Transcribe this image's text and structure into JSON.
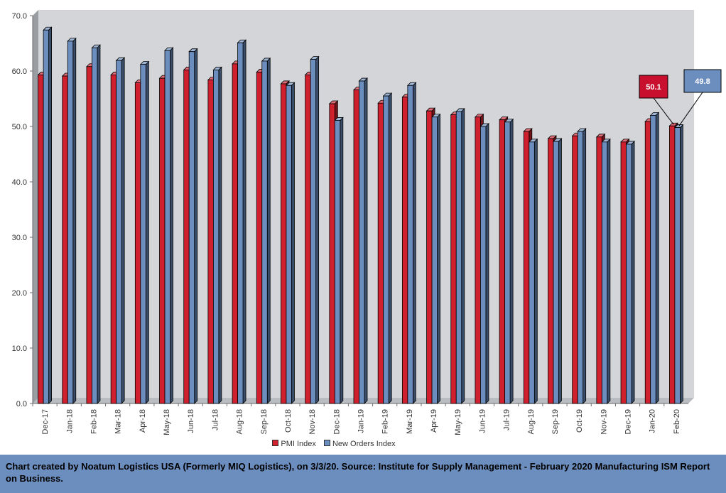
{
  "chart_data": {
    "type": "bar",
    "title": "",
    "xlabel": "",
    "ylabel": "",
    "ylim": [
      0,
      70
    ],
    "yticks": [
      "0.0",
      "10.0",
      "20.0",
      "30.0",
      "40.0",
      "50.0",
      "60.0",
      "70.0"
    ],
    "grid": false,
    "legend_position": "bottom",
    "categories": [
      "Dec-17",
      "Jan-18",
      "Feb-18",
      "Mar-18",
      "Apr-18",
      "May-18",
      "Jun-18",
      "Jul-18",
      "Aug-18",
      "Sep-18",
      "Oct-18",
      "Nov-18",
      "Dec-18",
      "Jan-19",
      "Feb-19",
      "Mar-19",
      "Apr-19",
      "May-19",
      "Jun-19",
      "Jul-19",
      "Aug-19",
      "Sep-19",
      "Oct-19",
      "Nov-19",
      "Dec-19",
      "Jan-20",
      "Feb-20"
    ],
    "series": [
      {
        "name": "PMI Index",
        "color": "#d0202e",
        "values": [
          59.3,
          59.1,
          60.8,
          59.3,
          57.9,
          58.7,
          60.2,
          58.4,
          61.3,
          59.8,
          57.7,
          59.3,
          54.1,
          56.6,
          54.2,
          55.3,
          52.8,
          52.1,
          51.7,
          51.2,
          49.1,
          47.8,
          48.3,
          48.1,
          47.2,
          50.9,
          50.1
        ]
      },
      {
        "name": "New Orders Index",
        "color": "#6c8ebf",
        "values": [
          67.4,
          65.4,
          64.2,
          61.9,
          61.2,
          63.7,
          63.5,
          60.2,
          65.1,
          61.8,
          57.4,
          62.1,
          51.1,
          58.2,
          55.5,
          57.4,
          51.7,
          52.7,
          50.0,
          50.8,
          47.2,
          47.3,
          49.1,
          47.2,
          46.8,
          52.0,
          49.8
        ]
      }
    ],
    "annotations": [
      {
        "text": "50.1",
        "series": "PMI Index",
        "category": "Feb-20",
        "bg": "#c8102e"
      },
      {
        "text": "49.8",
        "series": "New Orders Index",
        "category": "Feb-20",
        "bg": "#6c8ebf"
      }
    ]
  },
  "footer": {
    "text": "Chart created by Noatum Logistics USA (Formerly MIQ Logistics), on 3/3/20. Source: Institute for Supply Management - February 2020 Manufacturing ISM Report on Business."
  },
  "colors": {
    "plot_bg": "#d3d5d8",
    "footer_bg": "#6c8ebf",
    "pmi": "#d0202e",
    "new_orders": "#6c8ebf"
  }
}
